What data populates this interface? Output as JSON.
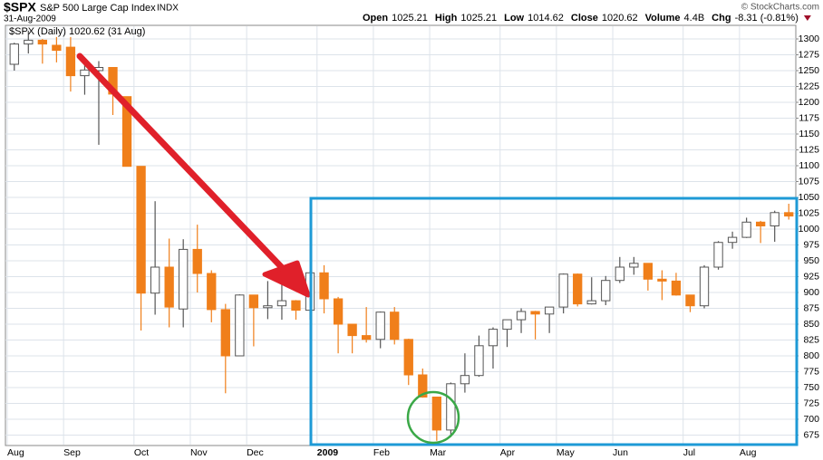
{
  "header": {
    "symbol": "$SPX",
    "name": "S&P 500 Large Cap Index",
    "exchange": "INDX",
    "date": "31-Aug-2009",
    "quote": [
      {
        "label": "Open",
        "value": "1025.21"
      },
      {
        "label": "High",
        "value": "1025.21"
      },
      {
        "label": "Low",
        "value": "1014.62"
      },
      {
        "label": "Close",
        "value": "1020.62"
      },
      {
        "label": "Volume",
        "value": "4.4B"
      },
      {
        "label": "Chg",
        "value": "-8.31 (-0.81%)"
      }
    ],
    "credit": "© StockCharts.com"
  },
  "chart_data": {
    "type": "candlestick",
    "legend": "$SPX (Daily) 1020.62 (31 Aug)",
    "categories": [
      "Aug",
      null,
      null,
      null,
      "Sep",
      null,
      null,
      null,
      null,
      "Oct",
      null,
      null,
      null,
      "Nov",
      null,
      null,
      null,
      "Dec",
      null,
      null,
      null,
      null,
      "2009",
      null,
      null,
      null,
      "Feb",
      null,
      null,
      null,
      "Mar",
      null,
      null,
      null,
      null,
      "Apr",
      null,
      null,
      null,
      "May",
      null,
      null,
      null,
      "Jun",
      null,
      null,
      null,
      null,
      "Jul",
      null,
      null,
      null,
      "Aug",
      null,
      null,
      null
    ],
    "open": [
      1260,
      1292,
      1298,
      1290,
      1287,
      1242,
      1250,
      1255,
      1209,
      1099,
      899,
      940,
      874,
      968,
      930,
      873,
      800,
      896,
      876,
      879,
      887,
      872,
      931,
      890,
      850,
      832,
      826,
      869,
      826,
      770,
      735,
      683,
      756,
      769,
      816,
      842,
      857,
      870,
      866,
      877,
      929,
      882,
      887,
      919,
      940,
      946,
      921,
      918,
      896,
      879,
      940,
      979,
      987,
      1011,
      1005,
      1026
    ],
    "high": [
      1294,
      1313,
      1300,
      1303,
      1303,
      1266,
      1265,
      1255,
      1209,
      1099,
      1044,
      985,
      984,
      1007,
      935,
      882,
      897,
      896,
      918,
      916,
      888,
      934,
      943,
      893,
      850,
      877,
      870,
      877,
      827,
      780,
      735,
      758,
      804,
      832,
      845,
      857,
      875,
      871,
      877,
      930,
      930,
      924,
      926,
      956,
      956,
      946,
      935,
      931,
      896,
      943,
      981,
      996,
      1018,
      1013,
      1029,
      1040
    ],
    "low": [
      1250,
      1277,
      1261,
      1263,
      1217,
      1212,
      1133,
      1180,
      1099,
      840,
      865,
      845,
      845,
      900,
      853,
      741,
      800,
      815,
      858,
      857,
      857,
      857,
      867,
      804,
      804,
      821,
      812,
      818,
      754,
      734,
      666,
      672,
      742,
      767,
      780,
      814,
      836,
      826,
      836,
      867,
      878,
      881,
      880,
      915,
      928,
      903,
      888,
      895,
      869,
      875,
      936,
      969,
      986,
      978,
      980,
      1015
    ],
    "close": [
      1292,
      1298,
      1292,
      1282,
      1242,
      1251,
      1255,
      1213,
      1099,
      899,
      940,
      877,
      968,
      930,
      873,
      800,
      896,
      876,
      879,
      887,
      872,
      931,
      890,
      850,
      832,
      826,
      869,
      826,
      770,
      735,
      683,
      756,
      769,
      816,
      842,
      857,
      870,
      866,
      877,
      929,
      882,
      887,
      919,
      940,
      946,
      921,
      918,
      896,
      879,
      940,
      979,
      987,
      1011,
      1005,
      1026,
      1020.62
    ],
    "up_color": "#555555",
    "down_color": "#f07f1a",
    "ylim": [
      660,
      1320
    ],
    "yticks": [
      675,
      700,
      725,
      750,
      775,
      800,
      825,
      850,
      875,
      900,
      925,
      950,
      975,
      1000,
      1025,
      1050,
      1075,
      1100,
      1125,
      1150,
      1175,
      1200,
      1225,
      1250,
      1275,
      1300
    ],
    "grid": true
  }
}
